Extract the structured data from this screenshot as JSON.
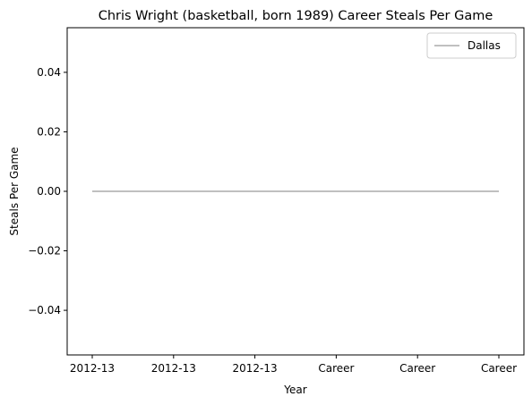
{
  "chart_data": {
    "type": "line",
    "title": "Chris Wright (basketball, born 1989) Career Steals Per Game",
    "xlabel": "Year",
    "ylabel": "Steals Per Game",
    "categories": [
      "2012-13",
      "2012-13",
      "2012-13",
      "Career",
      "Career",
      "Career"
    ],
    "series": [
      {
        "name": "Dallas",
        "values": [
          0,
          0,
          0,
          0,
          0,
          0
        ],
        "color": "#c0c0c0"
      }
    ],
    "ylim": [
      -0.055,
      0.055
    ],
    "yticks": [
      -0.04,
      -0.02,
      0.0,
      0.02,
      0.04
    ],
    "ytick_labels": [
      "−0.04",
      "−0.02",
      "0.00",
      "0.02",
      "0.04"
    ],
    "grid": false,
    "legend_position": "top-right"
  }
}
